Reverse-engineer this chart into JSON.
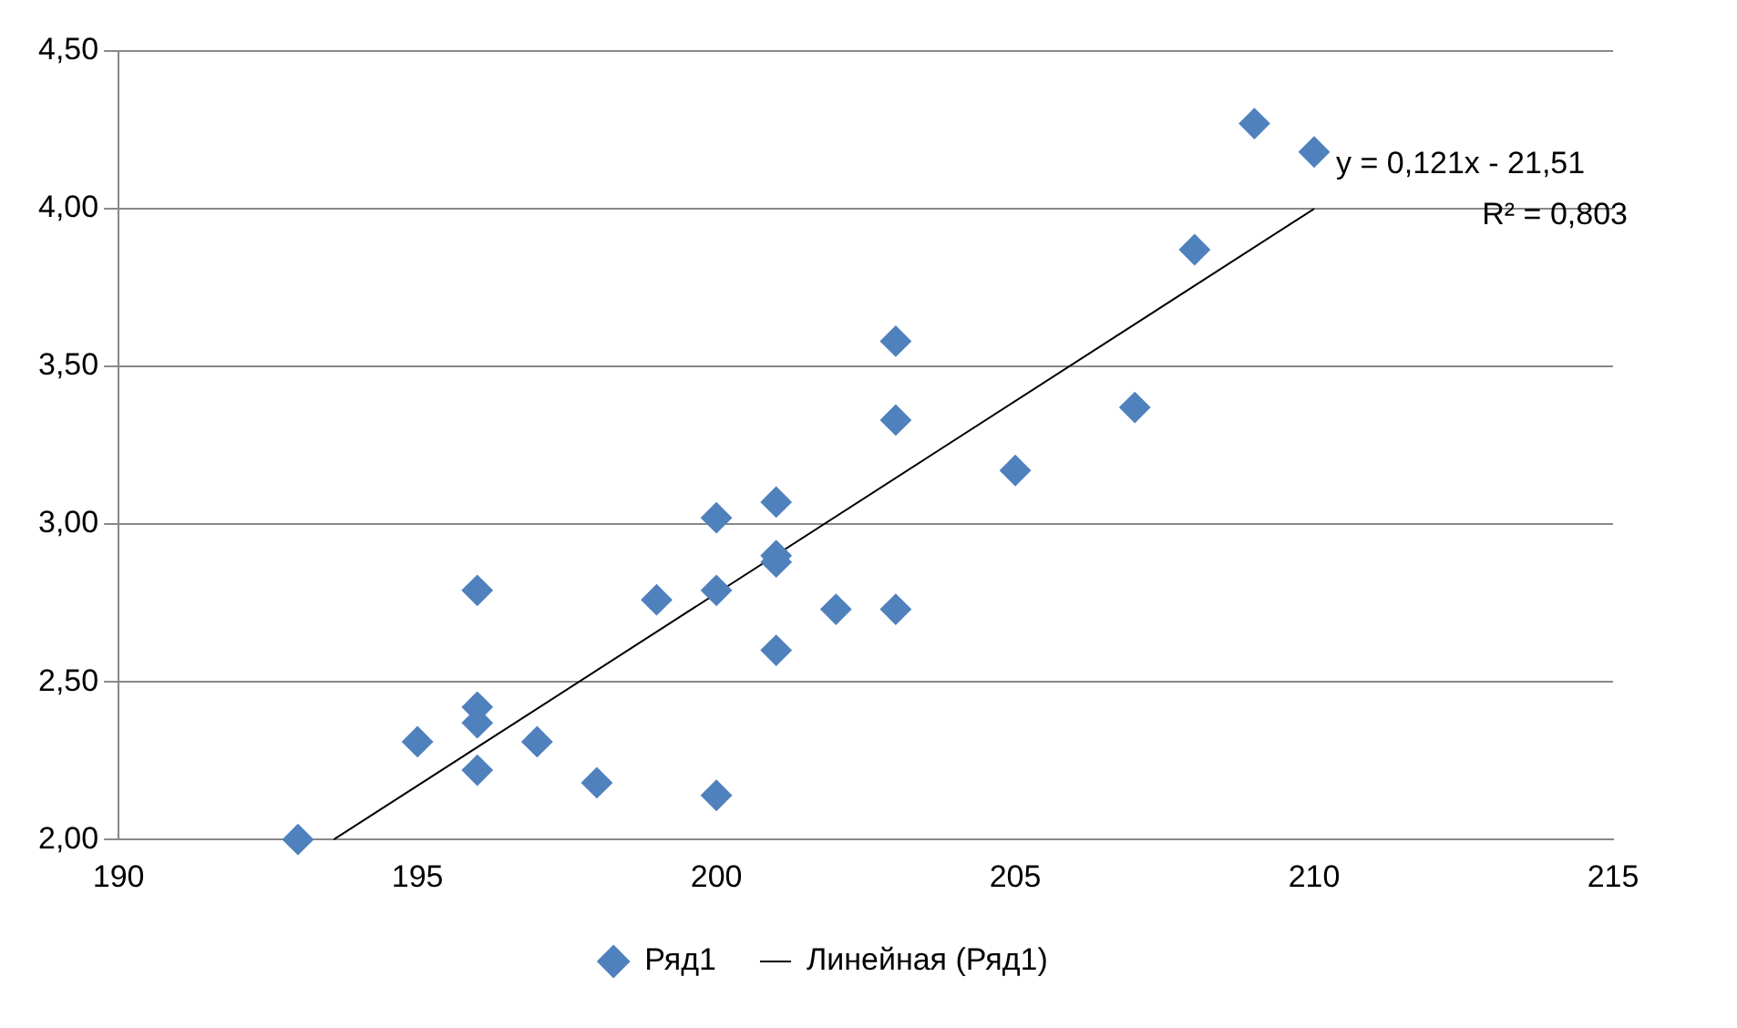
{
  "chart_data": {
    "type": "scatter",
    "grid": "y",
    "legend": "bottom",
    "xlim": [
      190,
      215
    ],
    "xticks": [
      190,
      195,
      200,
      205,
      210,
      215
    ],
    "ylim": [
      2,
      4.5
    ],
    "yticks": [
      {
        "value": 2,
        "label": "2,00"
      },
      {
        "value": 2.5,
        "label": "2,50"
      },
      {
        "value": 3,
        "label": "3,00"
      },
      {
        "value": 3.5,
        "label": "3,50"
      },
      {
        "value": 4,
        "label": "4,00"
      },
      {
        "value": 4.5,
        "label": "4,50"
      }
    ],
    "annotations": [
      "y = 0,121x - 21,51",
      "R² = 0,803"
    ],
    "series": [
      {
        "name": "Ряд1",
        "type": "scatter",
        "marker": "diamond",
        "color": "#4f81bd",
        "x": [
          193,
          195,
          196,
          196,
          196,
          196,
          197,
          198,
          199,
          200,
          200,
          200,
          201,
          201,
          201,
          201,
          202,
          203,
          203,
          203,
          205,
          207,
          208,
          209,
          210
        ],
        "values": [
          2.0,
          2.31,
          2.79,
          2.42,
          2.37,
          2.22,
          2.31,
          2.18,
          2.76,
          3.02,
          2.79,
          2.14,
          3.07,
          2.9,
          2.88,
          2.6,
          2.73,
          3.58,
          3.33,
          2.73,
          3.17,
          3.37,
          3.87,
          4.27,
          4.18
        ]
      },
      {
        "name": "Линейная (Ряд1)",
        "type": "line",
        "marker": "none",
        "color": "#000000",
        "x": [
          193.6,
          210
        ],
        "values": [
          2.0,
          4.0
        ]
      }
    ]
  }
}
